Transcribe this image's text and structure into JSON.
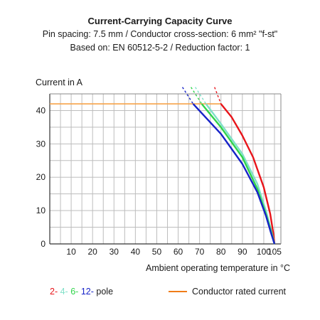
{
  "colors": {
    "pole2": "#e8141a",
    "pole4": "#7fe0c8",
    "pole6": "#2fd44a",
    "pole12": "#1622c8",
    "rated": "#f7a44a",
    "grid": "#bdbdbd",
    "legend_rated": "#f07d18"
  },
  "chart_data": {
    "type": "line",
    "title": "Current-Carrying Capacity Curve",
    "subtitle_lines": [
      "Pin spacing: 7.5 mm / Conductor cross-section: 6 mm² \"f-st\"",
      "Based on: EN 60512-5-2 / Reduction factor: 1"
    ],
    "ylabel": "Current in A",
    "xlabel": "Ambient operating temperature in °C",
    "xlim": [
      0,
      108
    ],
    "ylim": [
      0,
      45
    ],
    "x_ticks": [
      "10",
      "20",
      "30",
      "40",
      "50",
      "60",
      "70",
      "80",
      "90",
      "100",
      "105"
    ],
    "y_ticks": [
      "10",
      "20",
      "30",
      "40"
    ],
    "origin_label": "0",
    "grid": true,
    "series": [
      {
        "name": "2-",
        "color_key": "pole2",
        "dashed": [
          [
            77,
            47
          ],
          [
            80,
            42
          ]
        ],
        "points": [
          [
            80,
            42
          ],
          [
            85,
            38
          ],
          [
            90,
            32.5
          ],
          [
            95,
            26
          ],
          [
            100,
            17
          ],
          [
            103,
            9
          ],
          [
            104.5,
            3
          ],
          [
            105,
            0
          ]
        ]
      },
      {
        "name": "4-",
        "color_key": "pole4",
        "dashed": [
          [
            68,
            47
          ],
          [
            73,
            42
          ]
        ],
        "points": [
          [
            73,
            42
          ],
          [
            80,
            36
          ],
          [
            90,
            27
          ],
          [
            97,
            18
          ],
          [
            101,
            10
          ],
          [
            103.5,
            4
          ],
          [
            105,
            0
          ]
        ]
      },
      {
        "name": "6-",
        "color_key": "pole6",
        "dashed": [
          [
            66,
            47
          ],
          [
            71,
            42
          ]
        ],
        "points": [
          [
            71,
            42
          ],
          [
            80,
            35
          ],
          [
            90,
            26
          ],
          [
            97,
            16.5
          ],
          [
            101,
            9
          ],
          [
            103.5,
            3.5
          ],
          [
            105,
            0
          ]
        ]
      },
      {
        "name": "12-",
        "color_key": "pole12",
        "dashed": [
          [
            62,
            47
          ],
          [
            67,
            42
          ]
        ],
        "points": [
          [
            67,
            42
          ],
          [
            80,
            33
          ],
          [
            90,
            24
          ],
          [
            97,
            15.5
          ],
          [
            101,
            8.5
          ],
          [
            103.5,
            3
          ],
          [
            105,
            0
          ]
        ]
      }
    ],
    "rated_current": {
      "name": "Conductor rated current",
      "value": 42,
      "x_range": [
        0,
        80
      ]
    },
    "legend": {
      "poles_suffix": "pole",
      "rated_label": "Conductor rated current"
    }
  }
}
